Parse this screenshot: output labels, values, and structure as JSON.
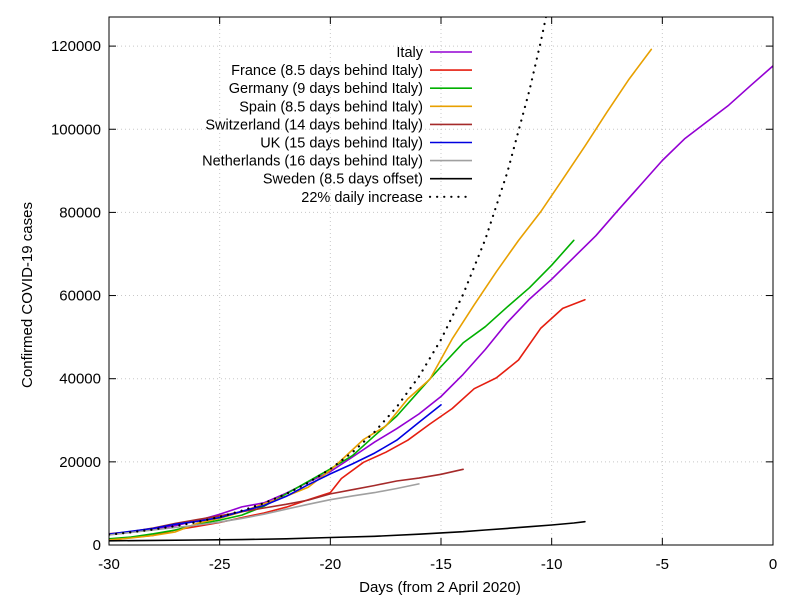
{
  "chart_data": {
    "type": "line",
    "xlabel": "Days (from 2 April 2020)",
    "ylabel": "Confirmed COVID-19 cases",
    "xlim": [
      -30,
      0
    ],
    "ylim": [
      0,
      127000
    ],
    "x_ticks": [
      -30,
      -25,
      -20,
      -15,
      -10,
      -5,
      0
    ],
    "y_ticks": [
      0,
      20000,
      40000,
      60000,
      80000,
      100000,
      120000
    ],
    "grid": true,
    "legend_position": "top-left",
    "series": [
      {
        "name": "Italy",
        "color": "#9400d3",
        "dash": "solid",
        "x": [
          -30,
          -29,
          -28,
          -27,
          -26,
          -25,
          -24,
          -23,
          -22,
          -21,
          -20,
          -19,
          -18,
          -17,
          -16,
          -15,
          -14,
          -13,
          -12,
          -11,
          -10,
          -9,
          -8,
          -7,
          -6,
          -5,
          -4,
          -3,
          -2,
          -1,
          0
        ],
        "y": [
          2502,
          3089,
          3858,
          4636,
          5883,
          7375,
          9172,
          10149,
          12462,
          15113,
          17660,
          21157,
          24747,
          27980,
          31506,
          35713,
          41035,
          47021,
          53578,
          59138,
          63927,
          69176,
          74386,
          80539,
          86498,
          92472,
          97689,
          101739,
          105792,
          110574,
          115242
        ]
      },
      {
        "name": "France (8.5 days behind Italy)",
        "color": "#e51e10",
        "dash": "solid",
        "x": [
          -30,
          -29,
          -28,
          -27,
          -26,
          -25,
          -24,
          -23,
          -22,
          -21,
          -20,
          -19.5,
          -18.5,
          -17.5,
          -16.5,
          -15.5,
          -14.5,
          -13.5,
          -12.5,
          -11.5,
          -10.5,
          -9.5,
          -8.5
        ],
        "y": [
          1100,
          1800,
          2300,
          3600,
          4500,
          5400,
          6600,
          7700,
          9100,
          10900,
          12600,
          16000,
          19900,
          22300,
          25200,
          29100,
          32800,
          37600,
          40200,
          44500,
          52100,
          56900,
          59000
        ]
      },
      {
        "name": "Germany (9 days behind Italy)",
        "color": "#00b000",
        "dash": "solid",
        "x": [
          -30,
          -29,
          -28,
          -27,
          -26,
          -25,
          -24,
          -23,
          -22,
          -21,
          -20,
          -19,
          -18,
          -17,
          -16,
          -15,
          -14,
          -13,
          -12,
          -11,
          -10,
          -9
        ],
        "y": [
          1500,
          1900,
          2700,
          3600,
          5000,
          6000,
          7200,
          9300,
          12300,
          15300,
          18300,
          21500,
          26300,
          31000,
          37000,
          42900,
          48600,
          52500,
          57300,
          61900,
          67300,
          73300
        ]
      },
      {
        "name": "Spain (8.5 days behind Italy)",
        "color": "#e8a000",
        "dash": "solid",
        "x": [
          -30,
          -29,
          -28,
          -27,
          -26,
          -25,
          -24,
          -23,
          -22,
          -21,
          -20,
          -19.5,
          -18.5,
          -17.5,
          -16.5,
          -15.5,
          -14.5,
          -13.5,
          -12.5,
          -11.5,
          -10.5,
          -9.5,
          -8.5,
          -7.5,
          -6.5,
          -5.5
        ],
        "y": [
          1231,
          1695,
          2277,
          3146,
          5232,
          6391,
          7988,
          9942,
          11748,
          13910,
          17963,
          20410,
          25374,
          28603,
          35136,
          39885,
          49515,
          57786,
          65719,
          73235,
          80110,
          87956,
          95923,
          104118,
          112065,
          119199
        ]
      },
      {
        "name": "Switzerland (14 days behind Italy)",
        "color": "#a52a2a",
        "dash": "solid",
        "x": [
          -30,
          -29,
          -28,
          -27,
          -26,
          -25,
          -24,
          -23,
          -22,
          -21,
          -20,
          -19,
          -18,
          -17,
          -16,
          -15,
          -14
        ],
        "y": [
          2700,
          3200,
          4100,
          5200,
          6100,
          7000,
          8000,
          8900,
          9800,
          10800,
          12300,
          13300,
          14300,
          15400,
          16100,
          17000,
          18200
        ]
      },
      {
        "name": "UK (15 days behind Italy)",
        "color": "#0000e0",
        "dash": "solid",
        "x": [
          -30,
          -29,
          -28,
          -27,
          -26,
          -25,
          -24,
          -23,
          -22,
          -21,
          -20,
          -19,
          -18,
          -17,
          -16,
          -15
        ],
        "y": [
          2600,
          3300,
          4000,
          5000,
          5700,
          6600,
          8100,
          9500,
          11700,
          14500,
          17100,
          19500,
          22100,
          25200,
          29500,
          33700
        ]
      },
      {
        "name": "Netherlands (16 days behind Italy)",
        "color": "#a0a0a0",
        "dash": "solid",
        "x": [
          -30,
          -29,
          -28,
          -27,
          -26,
          -25,
          -24,
          -23,
          -22,
          -21,
          -20,
          -19,
          -18,
          -17,
          -16
        ],
        "y": [
          2400,
          3000,
          3600,
          4200,
          4800,
          5500,
          6400,
          7400,
          8600,
          9800,
          10900,
          11800,
          12600,
          13600,
          14700
        ]
      },
      {
        "name": "Sweden (8.5 days offset)",
        "color": "#000000",
        "dash": "solid",
        "x": [
          -30,
          -28,
          -26,
          -24,
          -22,
          -20,
          -18,
          -16,
          -15,
          -14,
          -13,
          -12,
          -11,
          -10,
          -9,
          -8.5
        ],
        "y": [
          1000,
          1100,
          1200,
          1300,
          1500,
          1800,
          2100,
          2600,
          2900,
          3200,
          3600,
          4000,
          4400,
          4800,
          5300,
          5600
        ]
      },
      {
        "name": "22% daily increase",
        "color": "#000000",
        "dash": "dotted",
        "x": [
          -30,
          -29,
          -28,
          -27,
          -26,
          -25,
          -24,
          -23,
          -22,
          -21,
          -20,
          -19,
          -18,
          -17,
          -16,
          -15,
          -14,
          -13,
          -12,
          -11,
          -10.5,
          -10
        ],
        "y": [
          2502,
          3052,
          3724,
          4543,
          5542,
          6762,
          8249,
          10064,
          12278,
          14980,
          18275,
          22296,
          27201,
          33185,
          40486,
          49393,
          60260,
          73517,
          89691,
          109423,
          120860,
          133500
        ]
      }
    ]
  }
}
